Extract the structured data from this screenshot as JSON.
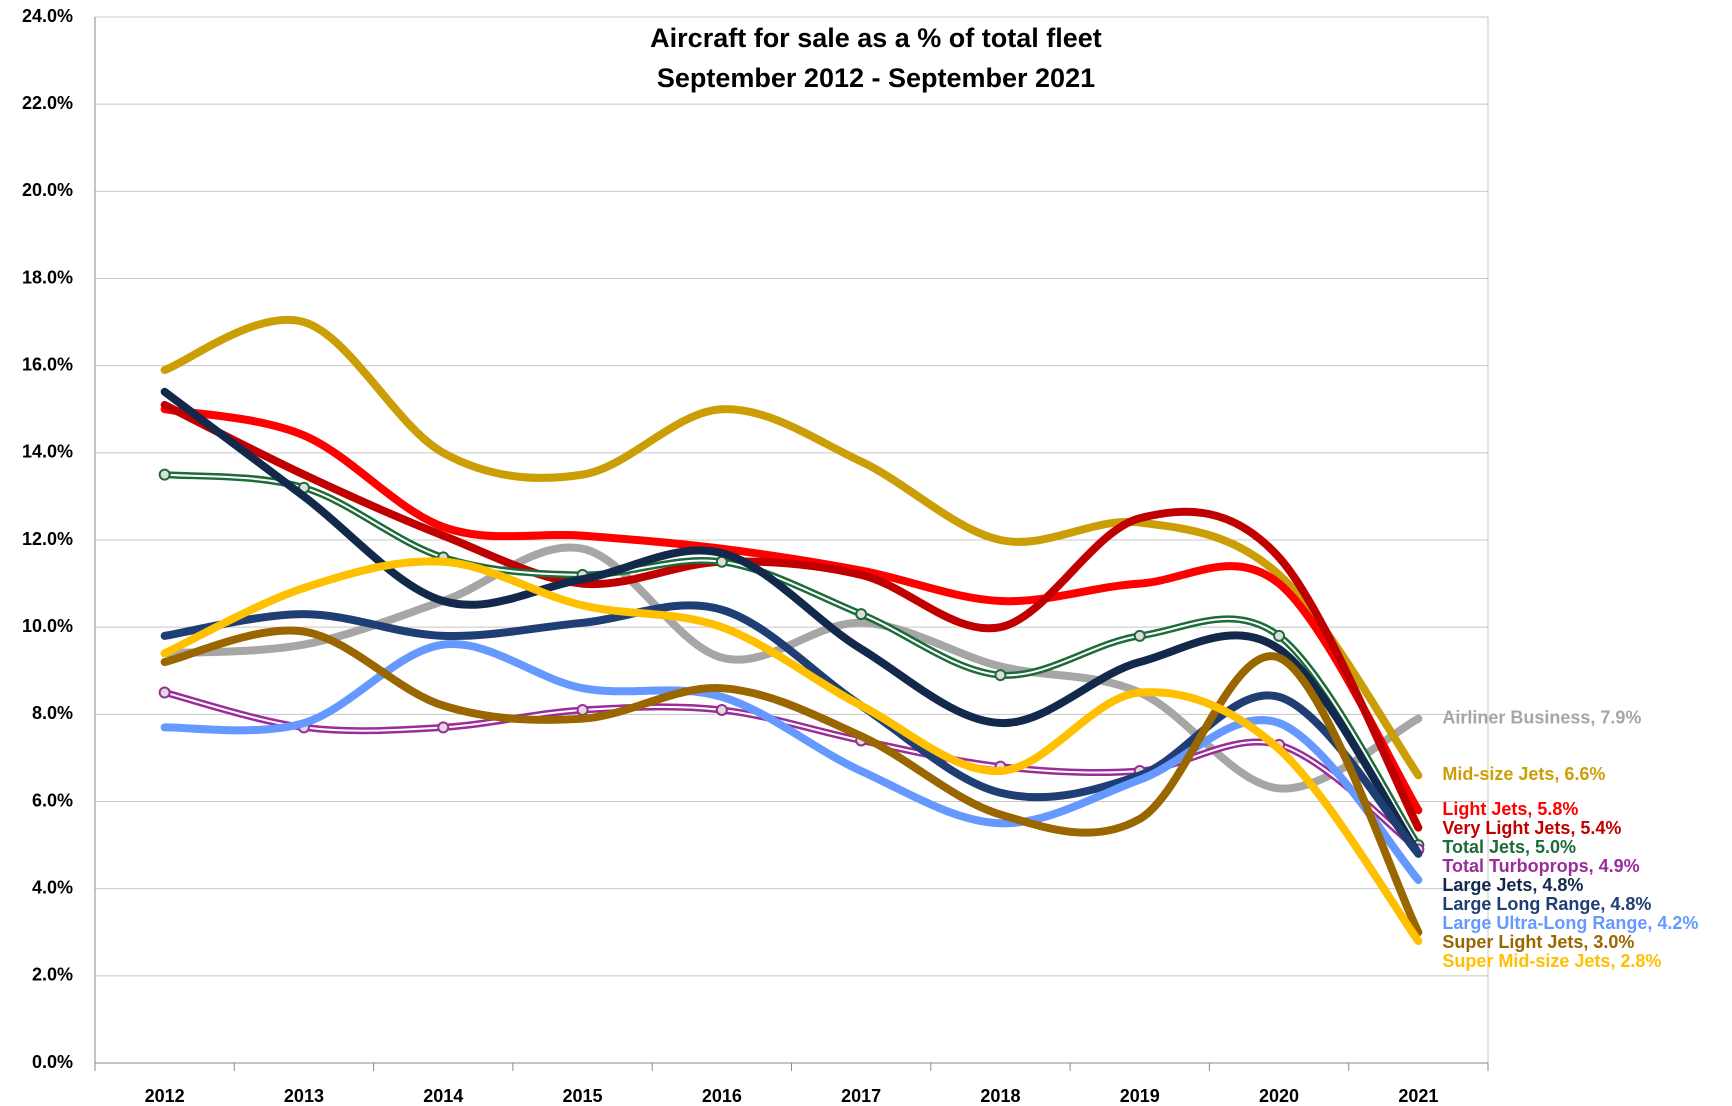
{
  "chart_data": {
    "type": "line",
    "title": "Aircraft for sale as a % of total fleet",
    "subtitle": "September 2012 - September 2021",
    "categories": [
      "2012",
      "2013",
      "2014",
      "2015",
      "2016",
      "2017",
      "2018",
      "2019",
      "2020",
      "2021"
    ],
    "ylim": [
      0,
      24
    ],
    "yticks": [
      {
        "value": 0,
        "label": "0.0%"
      },
      {
        "value": 2,
        "label": "2.0%"
      },
      {
        "value": 4,
        "label": "4.0%"
      },
      {
        "value": 6,
        "label": "6.0%"
      },
      {
        "value": 8,
        "label": "8.0%"
      },
      {
        "value": 10,
        "label": "10.0%"
      },
      {
        "value": 12,
        "label": "12.0%"
      },
      {
        "value": 14,
        "label": "14.0%"
      },
      {
        "value": 16,
        "label": "16.0%"
      },
      {
        "value": 18,
        "label": "18.0%"
      },
      {
        "value": 20,
        "label": "20.0%"
      },
      {
        "value": 22,
        "label": "22.0%"
      },
      {
        "value": 24,
        "label": "24.0%"
      }
    ],
    "grid": true,
    "series": [
      {
        "name": "Airliner Business",
        "end_label": "Airliner Business, 7.9%",
        "color": "#a6a6a6",
        "values": [
          9.4,
          9.6,
          10.6,
          11.8,
          9.3,
          10.1,
          9.1,
          8.5,
          6.3,
          7.9
        ]
      },
      {
        "name": "Mid-size Jets",
        "end_label": "Mid-size Jets, 6.6%",
        "color": "#cc9e06",
        "values": [
          15.9,
          17.0,
          14.0,
          13.5,
          15.0,
          13.8,
          12.0,
          12.4,
          11.2,
          6.6
        ]
      },
      {
        "name": "Light Jets",
        "end_label": "Light Jets, 5.8%",
        "color": "#ff0000",
        "values": [
          15.0,
          14.4,
          12.3,
          12.1,
          11.8,
          11.3,
          10.6,
          11.0,
          11.0,
          5.8
        ]
      },
      {
        "name": "Very Light Jets",
        "end_label": "Very Light Jets, 5.4%",
        "color": "#c00000",
        "values": [
          15.1,
          13.5,
          12.1,
          11.0,
          11.5,
          11.2,
          10.0,
          12.5,
          11.6,
          5.4
        ]
      },
      {
        "name": "Total Jets",
        "end_label": "Total Jets, 5.0%",
        "color": "#1e6b3a",
        "markers": true,
        "values": [
          13.5,
          13.2,
          11.6,
          11.2,
          11.5,
          10.3,
          8.9,
          9.8,
          9.8,
          5.0
        ]
      },
      {
        "name": "Total Turboprops",
        "end_label": "Total Turboprops, 4.9%",
        "color": "#9b2d9b",
        "markers": true,
        "values": [
          8.5,
          7.7,
          7.7,
          8.1,
          8.1,
          7.4,
          6.8,
          6.7,
          7.3,
          4.9
        ]
      },
      {
        "name": "Large Jets",
        "end_label": "Large Jets, 4.8%",
        "color": "#13294b",
        "values": [
          15.4,
          13.0,
          10.6,
          11.1,
          11.7,
          9.5,
          7.8,
          9.2,
          9.5,
          4.8
        ]
      },
      {
        "name": "Large Long Range",
        "end_label": "Large Long Range, 4.8%",
        "color": "#1f3f74",
        "values": [
          9.8,
          10.3,
          9.8,
          10.1,
          10.4,
          8.2,
          6.2,
          6.6,
          8.4,
          4.8
        ]
      },
      {
        "name": "Large Ultra-Long Range",
        "end_label": "Large Ultra-Long Range, 4.2%",
        "color": "#6699ff",
        "values": [
          7.7,
          7.8,
          9.6,
          8.6,
          8.4,
          6.7,
          5.5,
          6.5,
          7.8,
          4.2
        ]
      },
      {
        "name": "Super Light Jets",
        "end_label": "Super Light Jets, 3.0%",
        "color": "#996600",
        "values": [
          9.2,
          9.9,
          8.2,
          7.9,
          8.6,
          7.5,
          5.7,
          5.6,
          9.3,
          3.0
        ]
      },
      {
        "name": "Super Mid-size Jets",
        "end_label": "Super Mid-size Jets, 2.8%",
        "color": "#ffc000",
        "values": [
          9.4,
          10.9,
          11.5,
          10.5,
          10.0,
          8.2,
          6.7,
          8.5,
          7.2,
          2.8
        ]
      }
    ]
  }
}
